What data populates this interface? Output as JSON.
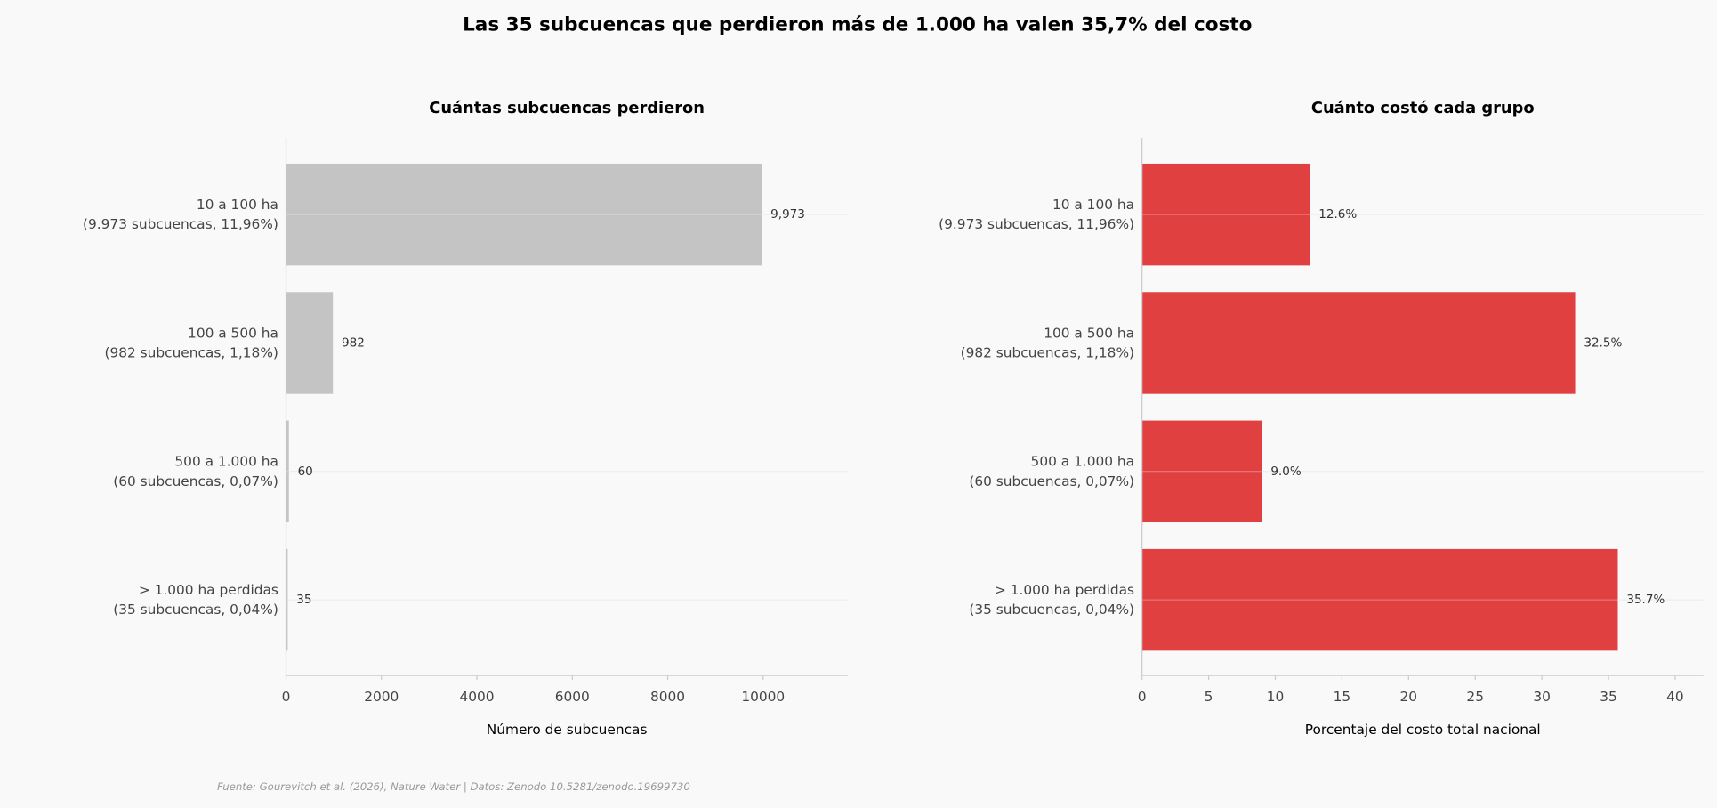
{
  "title": "Las 35 subcuencas que perdieron más de 1.000 ha valen 35,7% del costo",
  "source": "Fuente: Gourevitch et al. (2026), Nature Water | Datos: Zenodo 10.5281/zenodo.19699730",
  "chart_data": [
    {
      "type": "barh",
      "title": "Cuántas subcuencas perdieron",
      "xlabel": "Número de subcuencas",
      "categories": [
        "10 a 100 ha\n(9.973 subcuencas, 11,96%)",
        "100 a 500 ha\n(982 subcuencas, 1,18%)",
        "500 a 1.000 ha\n(60 subcuencas, 0,07%)",
        "> 1.000 ha perdidas\n(35 subcuencas, 0,04%)"
      ],
      "values": [
        9973,
        982,
        60,
        35
      ],
      "value_labels": [
        "9,973",
        "982",
        "60",
        "35"
      ],
      "color": "#c4c4c4",
      "xlim": [
        0,
        11770
      ],
      "xticks": [
        0,
        2000,
        4000,
        6000,
        8000,
        10000
      ],
      "grid": true
    },
    {
      "type": "barh",
      "title": "Cuánto costó cada grupo",
      "xlabel": "Porcentaje del costo total nacional",
      "categories": [
        "10 a 100 ha\n(9.973 subcuencas, 11,96%)",
        "100 a 500 ha\n(982 subcuencas, 1,18%)",
        "500 a 1.000 ha\n(60 subcuencas, 0,07%)",
        "> 1.000 ha perdidas\n(35 subcuencas, 0,04%)"
      ],
      "values": [
        12.6,
        32.5,
        9.0,
        35.7
      ],
      "value_labels": [
        "12.6%",
        "32.5%",
        "9.0%",
        "35.7%"
      ],
      "color": "#e04040",
      "xlim": [
        0,
        42.13
      ],
      "xticks": [
        0,
        5,
        10,
        15,
        20,
        25,
        30,
        35,
        40
      ],
      "grid": true
    }
  ]
}
